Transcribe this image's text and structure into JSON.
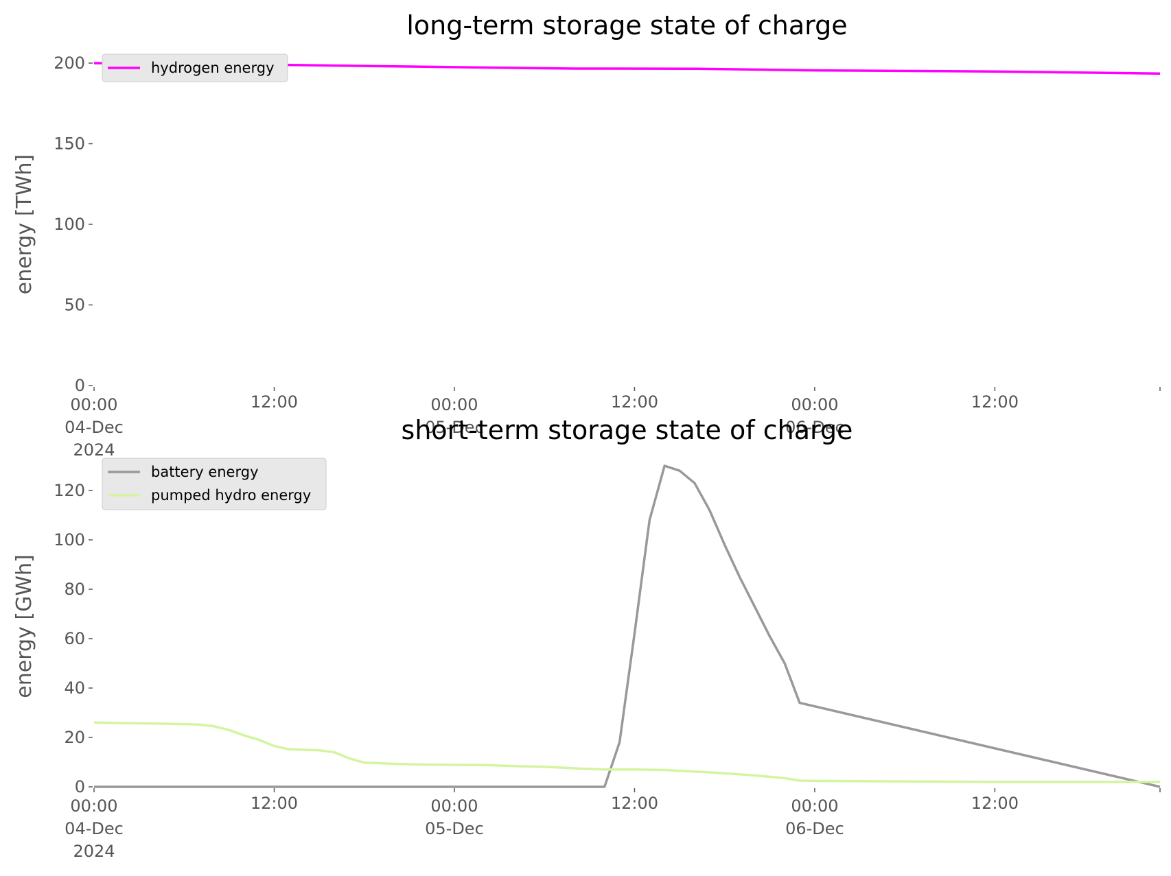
{
  "chart_data": [
    {
      "type": "line",
      "title": "long-term storage state of charge",
      "xlabel": "",
      "ylabel": "energy [TWh]",
      "ylim": [
        0,
        200
      ],
      "yticks": [
        0,
        50,
        100,
        150,
        200
      ],
      "xlim": [
        "2024-12-04 00:00",
        "2024-12-06 23:00"
      ],
      "xticks": [
        {
          "x": "2024-12-04 00:00",
          "lines": [
            "00:00",
            "04-Dec",
            "2024"
          ]
        },
        {
          "x": "2024-12-04 12:00",
          "lines": [
            "12:00"
          ]
        },
        {
          "x": "2024-12-05 00:00",
          "lines": [
            "00:00",
            "05-Dec"
          ]
        },
        {
          "x": "2024-12-05 12:00",
          "lines": [
            "12:00"
          ]
        },
        {
          "x": "2024-12-06 00:00",
          "lines": [
            "00:00",
            "06-Dec"
          ]
        },
        {
          "x": "2024-12-06 12:00",
          "lines": [
            "12:00"
          ]
        }
      ],
      "grid": false,
      "legend": "top-left",
      "series": [
        {
          "name": "hydrogen energy",
          "color": "#ff00ff",
          "x": [
            "2024-12-04 00:00",
            "2024-12-04 12:00",
            "2024-12-05 00:00",
            "2024-12-05 08:00",
            "2024-12-05 16:00",
            "2024-12-06 00:00",
            "2024-12-06 12:00",
            "2024-12-06 23:00"
          ],
          "values": [
            200,
            199,
            197.5,
            196.6,
            196.5,
            195.5,
            194.8,
            193.5
          ]
        }
      ]
    },
    {
      "type": "line",
      "title": "short-term storage state of charge",
      "xlabel": "",
      "ylabel": "energy [GWh]",
      "ylim": [
        0,
        130
      ],
      "yticks": [
        0,
        20,
        40,
        60,
        80,
        100,
        120
      ],
      "xlim": [
        "2024-12-04 00:00",
        "2024-12-06 23:00"
      ],
      "xticks": [
        {
          "x": "2024-12-04 00:00",
          "lines": [
            "00:00",
            "04-Dec",
            "2024"
          ]
        },
        {
          "x": "2024-12-04 12:00",
          "lines": [
            "12:00"
          ]
        },
        {
          "x": "2024-12-05 00:00",
          "lines": [
            "00:00",
            "05-Dec"
          ]
        },
        {
          "x": "2024-12-05 12:00",
          "lines": [
            "12:00"
          ]
        },
        {
          "x": "2024-12-06 00:00",
          "lines": [
            "00:00",
            "06-Dec"
          ]
        },
        {
          "x": "2024-12-06 12:00",
          "lines": [
            "12:00"
          ]
        }
      ],
      "grid": false,
      "legend": "top-left",
      "series": [
        {
          "name": "battery energy",
          "color": "#999999",
          "x": [
            "2024-12-04 00:00",
            "2024-12-05 09:00",
            "2024-12-05 10:00",
            "2024-12-05 11:00",
            "2024-12-05 12:00",
            "2024-12-05 13:00",
            "2024-12-05 14:00",
            "2024-12-05 15:00",
            "2024-12-05 16:00",
            "2024-12-05 17:00",
            "2024-12-05 18:00",
            "2024-12-05 19:00",
            "2024-12-05 20:00",
            "2024-12-05 21:00",
            "2024-12-05 22:00",
            "2024-12-05 23:00",
            "2024-12-06 23:00"
          ],
          "values": [
            0,
            0,
            0,
            18,
            62,
            108,
            130,
            128,
            123,
            112,
            98,
            85,
            73,
            61,
            50,
            34,
            0
          ]
        },
        {
          "name": "pumped hydro energy",
          "color": "#d4f5a0",
          "x": [
            "2024-12-04 00:00",
            "2024-12-04 02:00",
            "2024-12-04 04:00",
            "2024-12-04 06:00",
            "2024-12-04 07:00",
            "2024-12-04 08:00",
            "2024-12-04 09:00",
            "2024-12-04 10:00",
            "2024-12-04 11:00",
            "2024-12-04 12:00",
            "2024-12-04 13:00",
            "2024-12-04 14:00",
            "2024-12-04 15:00",
            "2024-12-04 16:00",
            "2024-12-04 17:00",
            "2024-12-04 18:00",
            "2024-12-04 20:00",
            "2024-12-04 22:00",
            "2024-12-05 00:00",
            "2024-12-05 02:00",
            "2024-12-05 04:00",
            "2024-12-05 06:00",
            "2024-12-05 08:00",
            "2024-12-05 10:00",
            "2024-12-05 12:00",
            "2024-12-05 14:00",
            "2024-12-05 16:00",
            "2024-12-05 18:00",
            "2024-12-05 20:00",
            "2024-12-05 22:00",
            "2024-12-05 23:00",
            "2024-12-06 00:00",
            "2024-12-06 06:00",
            "2024-12-06 12:00",
            "2024-12-06 23:00"
          ],
          "values": [
            26,
            25.8,
            25.6,
            25.4,
            25.2,
            24.5,
            23,
            20.8,
            19,
            16.5,
            15.2,
            15,
            14.8,
            14,
            11.5,
            9.8,
            9.3,
            9,
            8.9,
            8.8,
            8.4,
            8.1,
            7.5,
            7,
            7,
            6.8,
            6.2,
            5.5,
            4.6,
            3.5,
            2.5,
            2.4,
            2.2,
            2,
            2
          ]
        }
      ]
    }
  ]
}
